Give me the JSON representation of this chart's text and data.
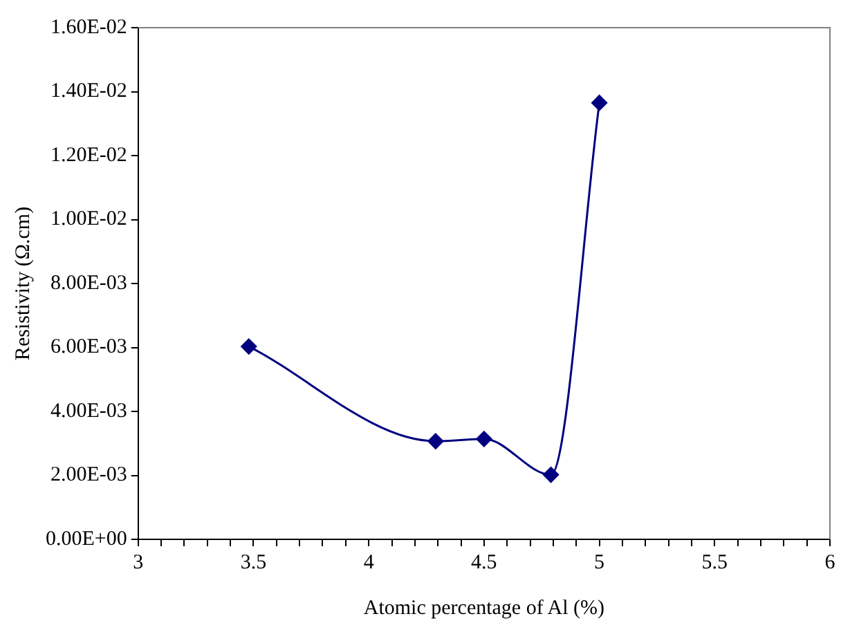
{
  "chart_data": {
    "type": "line",
    "xlabel": "Atomic percentage of Al (%)",
    "ylabel": "Resistivity (Ω.cm)",
    "x": [
      3.48,
      4.29,
      4.5,
      4.79,
      5.0
    ],
    "series": [
      {
        "color": "#000080",
        "values": [
          0.00603,
          0.00307,
          0.00314,
          0.00202,
          0.01365
        ]
      }
    ],
    "xlim": [
      3,
      6
    ],
    "xticks": [
      3,
      {
        "value": 3.1,
        "label": null
      },
      {
        "value": 3.2,
        "label": null
      },
      {
        "value": 3.3,
        "label": null
      },
      {
        "value": 3.4,
        "label": null
      },
      3.5,
      {
        "value": 3.6,
        "label": null
      },
      {
        "value": 3.7,
        "label": null
      },
      {
        "value": 3.8,
        "label": null
      },
      {
        "value": 3.9,
        "label": null
      },
      4,
      {
        "value": 4.1,
        "label": null
      },
      {
        "value": 4.2,
        "label": null
      },
      {
        "value": 4.3,
        "label": null
      },
      {
        "value": 4.4,
        "label": null
      },
      4.5,
      {
        "value": 4.6,
        "label": null
      },
      {
        "value": 4.7,
        "label": null
      },
      {
        "value": 4.8,
        "label": null
      },
      {
        "value": 4.9,
        "label": null
      },
      5,
      {
        "value": 5.1,
        "label": null
      },
      {
        "value": 5.2,
        "label": null
      },
      {
        "value": 5.3,
        "label": null
      },
      {
        "value": 5.4,
        "label": null
      },
      5.5,
      {
        "value": 5.6,
        "label": null
      },
      {
        "value": 5.7,
        "label": null
      },
      {
        "value": 5.8,
        "label": null
      },
      {
        "value": 5.9,
        "label": null
      },
      6
    ],
    "ylim": [
      0,
      0.016
    ],
    "yticks": [
      {
        "value": 0,
        "label": "0.00E+00"
      },
      {
        "value": 0.002,
        "label": "2.00E-03"
      },
      {
        "value": 0.004,
        "label": "4.00E-03"
      },
      {
        "value": 0.006,
        "label": "6.00E-03"
      },
      {
        "value": 0.008,
        "label": "8.00E-03"
      },
      {
        "value": 0.01,
        "label": "1.00E-02"
      },
      {
        "value": 0.012,
        "label": "1.20E-02"
      },
      {
        "value": 0.014,
        "label": "1.40E-02"
      },
      {
        "value": 0.016,
        "label": "1.60E-02"
      }
    ],
    "marker": "diamond",
    "line_style": "solid",
    "grid": false,
    "legend": false
  }
}
